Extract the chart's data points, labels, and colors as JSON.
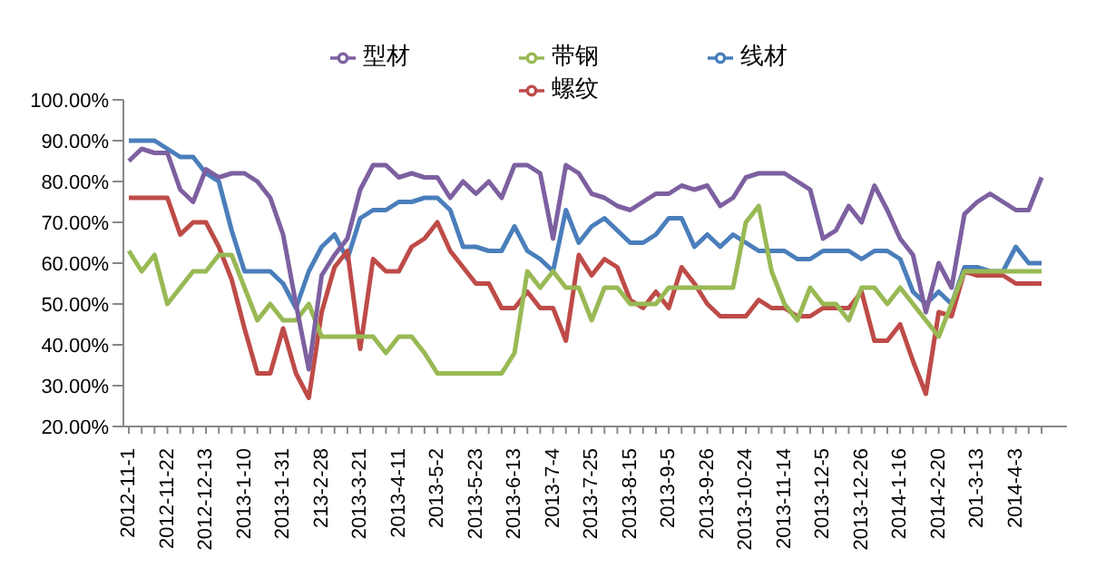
{
  "chart_data": {
    "type": "line",
    "categories": [
      "2012-11-1",
      null,
      null,
      "2012-11-22",
      null,
      null,
      "2012-12-13",
      null,
      null,
      "2013-1-10",
      null,
      null,
      "2013-1-31",
      null,
      null,
      "213-2-28",
      null,
      null,
      "2013-3-21",
      null,
      null,
      "2013-4-11",
      null,
      null,
      "2013-5-2",
      null,
      null,
      "2013-5-23",
      null,
      null,
      "2013-6-13",
      null,
      null,
      "2013-7-4",
      null,
      null,
      "2013-7-25",
      null,
      null,
      "2013-8-15",
      null,
      null,
      "2013-9-5",
      null,
      null,
      "2013-9-26",
      null,
      null,
      "2013-10-24",
      null,
      null,
      "2013-11-14",
      null,
      null,
      "2013-12-5",
      null,
      null,
      "2013-12-26",
      null,
      null,
      "2014-1-16",
      null,
      null,
      "2014-2-20",
      null,
      null,
      "201-3-13",
      null,
      null,
      "2014-4-3",
      null,
      null
    ],
    "series": [
      {
        "name": "线材",
        "color": "#4a7ebb",
        "values": [
          90,
          90,
          90,
          88,
          86,
          86,
          82,
          80,
          68,
          58,
          58,
          58,
          55,
          49,
          58,
          64,
          67,
          61,
          71,
          73,
          73,
          75,
          75,
          76,
          76,
          73,
          64,
          64,
          63,
          63,
          69,
          63,
          61,
          58,
          73,
          65,
          69,
          71,
          68,
          65,
          65,
          67,
          71,
          71,
          64,
          67,
          64,
          67,
          65,
          63,
          63,
          63,
          61,
          61,
          63,
          63,
          63,
          61,
          63,
          63,
          61,
          53,
          50,
          53,
          50,
          59,
          59,
          58,
          58,
          64,
          60,
          60
        ]
      },
      {
        "name": "螺纹",
        "color": "#be4b48",
        "values": [
          76,
          76,
          76,
          76,
          67,
          70,
          70,
          64,
          56,
          44,
          33,
          33,
          44,
          33,
          27,
          48,
          59,
          63,
          39,
          61,
          58,
          58,
          64,
          66,
          70,
          63,
          59,
          55,
          55,
          49,
          49,
          53,
          49,
          49,
          41,
          62,
          57,
          61,
          59,
          51,
          49,
          53,
          49,
          59,
          55,
          50,
          47,
          47,
          47,
          51,
          49,
          49,
          47,
          47,
          49,
          49,
          49,
          53,
          41,
          41,
          45,
          36,
          28,
          48,
          47,
          58,
          57,
          57,
          57,
          55,
          55,
          55
        ]
      },
      {
        "name": "带钢",
        "color": "#98b954",
        "values": [
          63,
          58,
          62,
          50,
          54,
          58,
          58,
          62,
          62,
          54,
          46,
          50,
          46,
          46,
          50,
          42,
          42,
          42,
          42,
          42,
          38,
          42,
          42,
          38,
          33,
          33,
          33,
          33,
          33,
          33,
          38,
          58,
          54,
          58,
          54,
          54,
          46,
          54,
          54,
          50,
          50,
          50,
          54,
          54,
          54,
          54,
          54,
          54,
          70,
          74,
          58,
          50,
          46,
          54,
          50,
          50,
          46,
          54,
          54,
          50,
          54,
          50,
          46,
          42,
          50,
          58,
          58,
          58,
          58,
          58,
          58,
          58
        ]
      },
      {
        "name": "型材",
        "color": "#7d60a0",
        "values": [
          85,
          88,
          87,
          87,
          78,
          75,
          83,
          81,
          82,
          82,
          80,
          76,
          67,
          50,
          34,
          57,
          62,
          66,
          78,
          84,
          84,
          81,
          82,
          81,
          81,
          76,
          80,
          77,
          80,
          76,
          84,
          84,
          82,
          66,
          84,
          82,
          77,
          76,
          74,
          73,
          75,
          77,
          77,
          79,
          78,
          79,
          74,
          76,
          81,
          82,
          82,
          82,
          80,
          78,
          66,
          68,
          74,
          70,
          79,
          73,
          66,
          62,
          48,
          60,
          54,
          72,
          75,
          77,
          75,
          73,
          73,
          81
        ]
      }
    ],
    "ylim": [
      20,
      100
    ],
    "yticks": [
      {
        "value": 20,
        "label": "20.00%"
      },
      {
        "value": 30,
        "label": "30.00%"
      },
      {
        "value": 40,
        "label": "40.00%"
      },
      {
        "value": 50,
        "label": "50.00%"
      },
      {
        "value": 60,
        "label": "60.00%"
      },
      {
        "value": 70,
        "label": "70.00%"
      },
      {
        "value": 80,
        "label": "80.00%"
      },
      {
        "value": 90,
        "label": "90.00%"
      },
      {
        "value": 100,
        "label": "100.00%"
      }
    ],
    "grid": false,
    "legend": "top",
    "marker": "none",
    "line_style": "solid"
  }
}
